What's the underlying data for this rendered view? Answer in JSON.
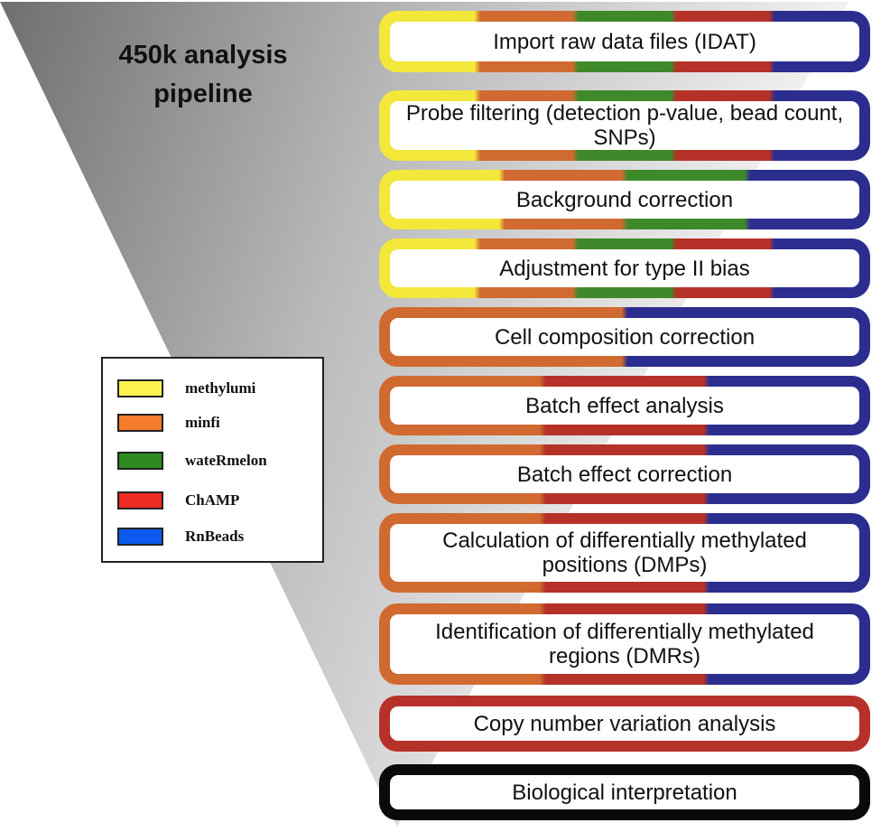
{
  "title_lines": [
    "450k analysis",
    "pipeline"
  ],
  "colors": {
    "methylumi": "#f3e83a",
    "minfi": "#d06a30",
    "wateRmelon": "#3e8a2a",
    "ChAMP": "#b63228",
    "RnBeads": "#2b2e8f",
    "none": "#0a0a0a"
  },
  "legend": [
    {
      "label": "methylumi",
      "color": "#fff44f"
    },
    {
      "label": "minfi",
      "color": "#f47c2c"
    },
    {
      "label": "wateRmelon",
      "color": "#2e8b22"
    },
    {
      "label": "ChAMP",
      "color": "#ee2a24"
    },
    {
      "label": "RnBeads",
      "color": "#0c59f0"
    }
  ],
  "steps": [
    {
      "label": "Import raw data files (IDAT)",
      "tools": [
        "methylumi",
        "minfi",
        "wateRmelon",
        "ChAMP",
        "RnBeads"
      ]
    },
    {
      "label": "Probe filtering (detection p-value, bead count, SNPs)",
      "tools": [
        "methylumi",
        "minfi",
        "wateRmelon",
        "ChAMP",
        "RnBeads"
      ]
    },
    {
      "label": "Background correction",
      "tools": [
        "methylumi",
        "minfi",
        "wateRmelon",
        "RnBeads"
      ]
    },
    {
      "label": "Adjustment for type II bias",
      "tools": [
        "methylumi",
        "minfi",
        "wateRmelon",
        "ChAMP",
        "RnBeads"
      ]
    },
    {
      "label": "Cell composition correction",
      "tools": [
        "minfi",
        "RnBeads"
      ]
    },
    {
      "label": "Batch effect analysis",
      "tools": [
        "minfi",
        "ChAMP",
        "RnBeads"
      ]
    },
    {
      "label": "Batch effect correction",
      "tools": [
        "minfi",
        "ChAMP",
        "RnBeads"
      ]
    },
    {
      "label": "Calculation of differentially methylated positions (DMPs)",
      "tools": [
        "minfi",
        "ChAMP",
        "RnBeads"
      ]
    },
    {
      "label": "Identification of differentially methylated regions (DMRs)",
      "tools": [
        "minfi",
        "ChAMP",
        "RnBeads"
      ]
    },
    {
      "label": "Copy number variation analysis",
      "tools": [
        "ChAMP"
      ]
    },
    {
      "label": "Biological interpretation",
      "tools": []
    }
  ]
}
